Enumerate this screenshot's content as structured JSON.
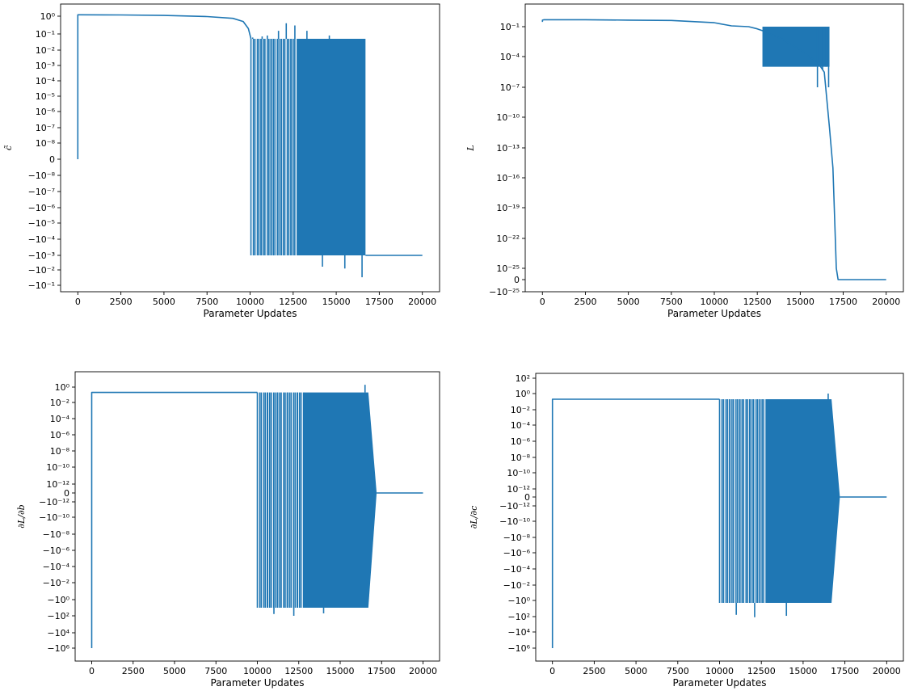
{
  "style": {
    "line_color": "#1f77b4"
  },
  "chart_data": [
    {
      "type": "line",
      "id": "c-hat",
      "title": "",
      "xlabel": "Parameter Updates",
      "ylabel": "c̃",
      "y_scale": "symlog",
      "xlim": [
        -1000,
        21000
      ],
      "x_ticks": [
        "0",
        "2500",
        "5000",
        "7500",
        "10000",
        "12500",
        "15000",
        "17500",
        "20000"
      ],
      "y_ticks": [
        "10⁰",
        "10⁻¹",
        "10⁻²",
        "10⁻³",
        "10⁻⁴",
        "10⁻⁵",
        "10⁻⁶",
        "10⁻⁷",
        "10⁻⁸",
        "0",
        "−10⁻⁸",
        "−10⁻⁷",
        "−10⁻⁶",
        "−10⁻⁵",
        "−10⁻⁴",
        "−10⁻³",
        "−10⁻²",
        "−10⁻¹"
      ],
      "series": [
        {
          "x": [
            0,
            0,
            100,
            2500,
            5000,
            7500,
            9000,
            9600,
            9900,
            10050
          ],
          "y": [
            0,
            1.2,
            1.2,
            1.17,
            1.1,
            0.95,
            0.75,
            0.5,
            0.2,
            0.05
          ]
        },
        {
          "x": [
            16700,
            17500,
            20000
          ],
          "y": [
            -0.001,
            -0.001,
            -0.001
          ]
        }
      ],
      "oscillation_band": {
        "x_start": 10050,
        "x_dense_start": 12750,
        "x_end": 16700,
        "y_max": 0.05,
        "y_min": -0.001
      },
      "spikes": [
        {
          "x": 10150,
          "y": 0.06
        },
        {
          "x": 10400,
          "y": 0.05
        },
        {
          "x": 10700,
          "y": 0.07
        },
        {
          "x": 11000,
          "y": 0.08
        },
        {
          "x": 11350,
          "y": 0.05
        },
        {
          "x": 11650,
          "y": 0.15
        },
        {
          "x": 12100,
          "y": 0.4
        },
        {
          "x": 12600,
          "y": 0.3
        },
        {
          "x": 13300,
          "y": 0.15
        },
        {
          "x": 14600,
          "y": 0.08
        },
        {
          "x": 15900,
          "y": 0.05
        },
        {
          "x": 16600,
          "y": 0.03
        },
        {
          "x": 16500,
          "y": -0.03
        },
        {
          "x": 15500,
          "y": -0.008
        },
        {
          "x": 14200,
          "y": -0.006
        }
      ]
    },
    {
      "type": "line",
      "id": "loss",
      "title": "",
      "xlabel": "Parameter Updates",
      "ylabel": "L",
      "y_scale": "symlog",
      "xlim": [
        -1000,
        21000
      ],
      "x_ticks": [
        "0",
        "2500",
        "5000",
        "7500",
        "10000",
        "12500",
        "15000",
        "17500",
        "20000"
      ],
      "y_ticks": [
        "10⁻¹",
        "10⁻⁴",
        "10⁻⁷",
        "10⁻¹⁰",
        "10⁻¹³",
        "10⁻¹⁶",
        "10⁻¹⁹",
        "10⁻²²",
        "10⁻²⁵",
        "0",
        "−10⁻²⁵"
      ],
      "series": [
        {
          "x": [
            0,
            0,
            100,
            2500,
            5000,
            7500,
            10000,
            11000,
            12000,
            12500,
            13000,
            14000,
            15000,
            15500,
            16000,
            16400,
            16700,
            16900,
            17000,
            17100,
            17200,
            20000
          ],
          "y": [
            0.3,
            0.45,
            0.5,
            0.5,
            0.45,
            0.42,
            0.25,
            0.12,
            0.1,
            0.06,
            0.03,
            0.005,
            0.0005,
            0.0001,
            3e-05,
            3e-06,
            1e-11,
            1e-15,
            1e-20,
            1e-25,
            0,
            0
          ]
        }
      ],
      "oscillation_band": {
        "x_start": 12800,
        "x_end": 16700,
        "y_max": 0.1,
        "y_min": 1e-05
      },
      "spikes": [
        {
          "x": 16000,
          "y": 1e-07
        },
        {
          "x": 16300,
          "y": 5e-06
        },
        {
          "x": 16500,
          "y": 1e-05
        },
        {
          "x": 16650,
          "y": 1e-07
        }
      ]
    },
    {
      "type": "line",
      "id": "dL-db",
      "title": "",
      "xlabel": "Parameter Updates",
      "ylabel": "∂L/∂b",
      "y_scale": "symlog",
      "xlim": [
        -1000,
        21000
      ],
      "x_ticks": [
        "0",
        "2500",
        "5000",
        "7500",
        "10000",
        "12500",
        "15000",
        "17500",
        "20000"
      ],
      "y_ticks": [
        "10⁰",
        "10⁻²",
        "10⁻⁴",
        "10⁻⁶",
        "10⁻⁸",
        "10⁻¹⁰",
        "10⁻¹²",
        "0",
        "−10⁻¹²",
        "−10⁻¹⁰",
        "−10⁻⁸",
        "−10⁻⁶",
        "−10⁻⁴",
        "−10⁻²",
        "−10⁰",
        "−10²",
        "−10⁴",
        "−10⁶"
      ],
      "series": [
        {
          "x": [
            0,
            0,
            100,
            10000
          ],
          "y": [
            -1000000,
            0.2,
            0.2,
            0.2
          ]
        },
        {
          "x": [
            17200,
            20000
          ],
          "y": [
            0,
            0
          ]
        }
      ],
      "oscillation_band": {
        "x_start": 10000,
        "x_dense_start": 12800,
        "x_end": 16700,
        "x_taper_end": 17200,
        "y_max": 0.2,
        "y_min": -10
      },
      "spikes": [
        {
          "x": 16500,
          "y": 2
        },
        {
          "x": 14000,
          "y": -50
        },
        {
          "x": 12200,
          "y": -100
        },
        {
          "x": 11000,
          "y": -60
        }
      ]
    },
    {
      "type": "line",
      "id": "dL-dc",
      "title": "",
      "xlabel": "Parameter Updates",
      "ylabel": "∂L/∂c",
      "y_scale": "symlog",
      "xlim": [
        -1000,
        21000
      ],
      "x_ticks": [
        "0",
        "2500",
        "5000",
        "7500",
        "10000",
        "12500",
        "15000",
        "17500",
        "20000"
      ],
      "y_ticks": [
        "10²",
        "10⁰",
        "10⁻²",
        "10⁻⁴",
        "10⁻⁶",
        "10⁻⁸",
        "10⁻¹⁰",
        "10⁻¹²",
        "0",
        "−10⁻¹²",
        "−10⁻¹⁰",
        "−10⁻⁸",
        "−10⁻⁶",
        "−10⁻⁴",
        "−10⁻²",
        "−10⁰",
        "−10²",
        "−10⁴",
        "−10⁶"
      ],
      "series": [
        {
          "x": [
            0,
            0,
            100,
            10000
          ],
          "y": [
            -1000000,
            0.2,
            0.2,
            0.2
          ]
        },
        {
          "x": [
            17200,
            20000
          ],
          "y": [
            0,
            0
          ]
        }
      ],
      "oscillation_band": {
        "x_start": 10000,
        "x_dense_start": 12800,
        "x_end": 16700,
        "x_taper_end": 17200,
        "y_max": 0.2,
        "y_min": -2
      },
      "spikes": [
        {
          "x": 16500,
          "y": 1
        },
        {
          "x": 14000,
          "y": -80
        },
        {
          "x": 12100,
          "y": -120
        },
        {
          "x": 11000,
          "y": -60
        }
      ]
    }
  ]
}
